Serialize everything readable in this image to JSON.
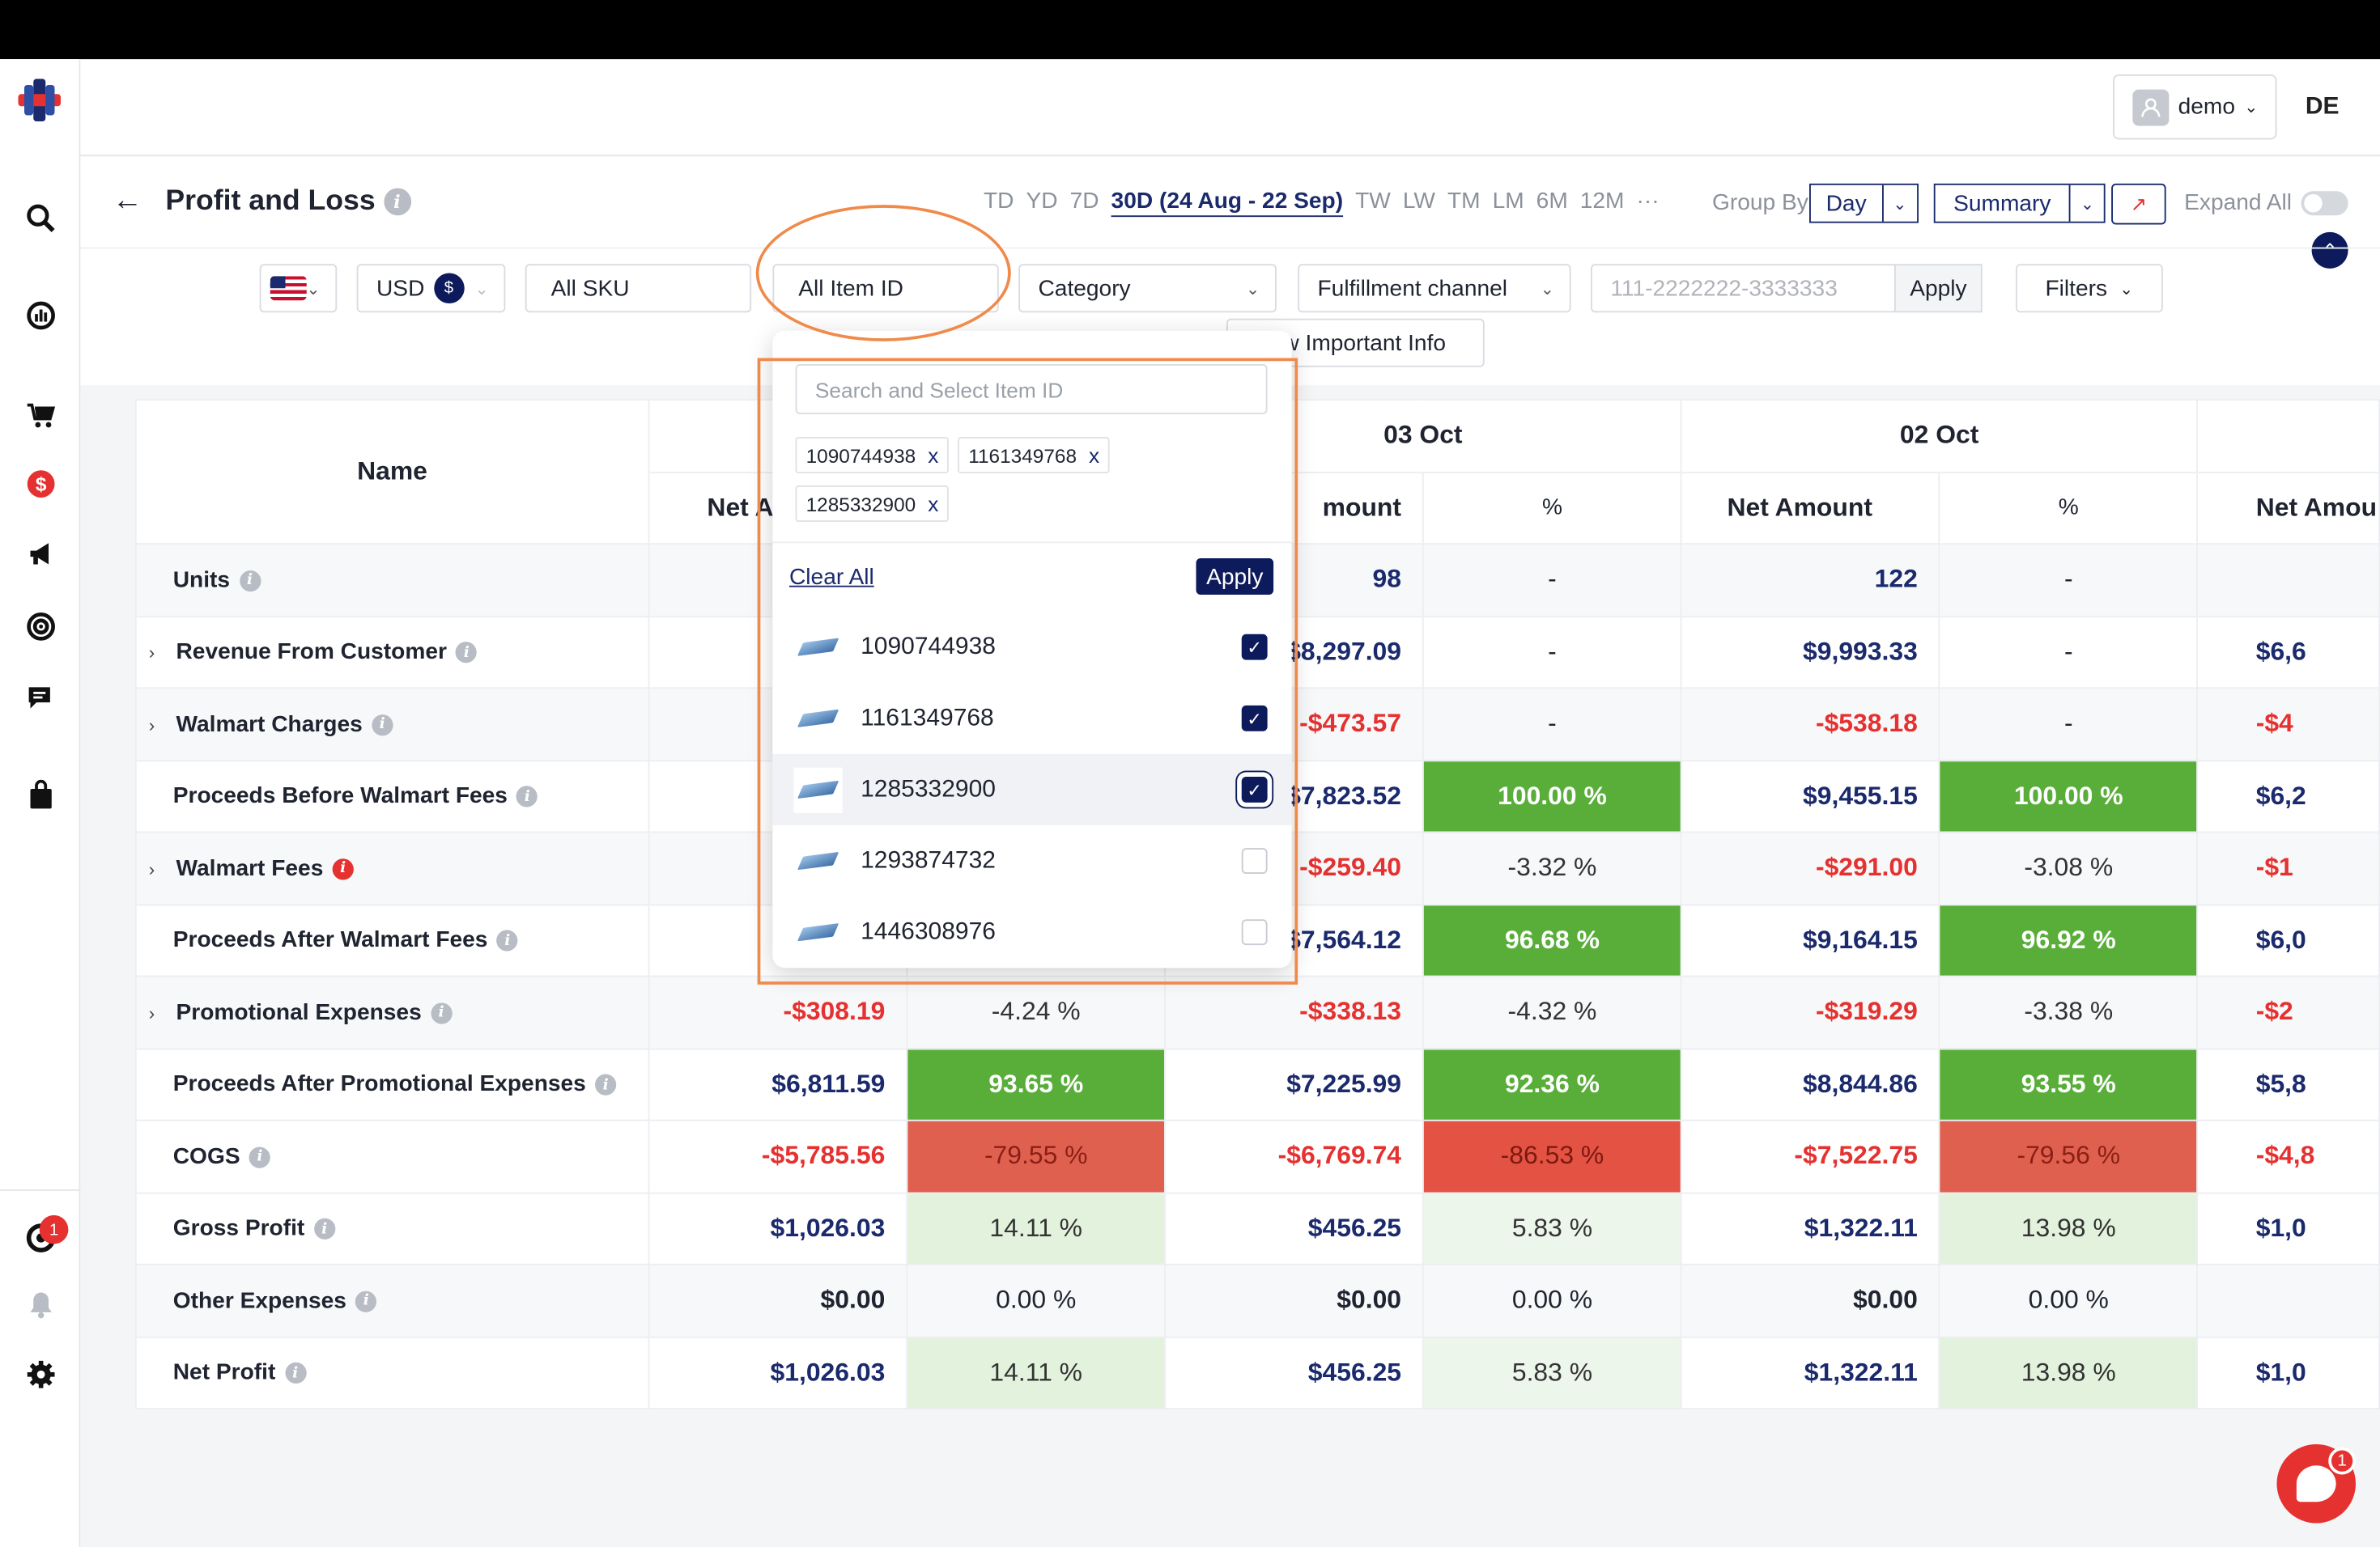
{
  "header": {
    "page_title": "Profit and Loss",
    "user": "demo",
    "user_initials": "DE"
  },
  "ranges": [
    {
      "label": "TD"
    },
    {
      "label": "YD"
    },
    {
      "label": "7D"
    },
    {
      "label": "30D (24 Aug - 22 Sep)",
      "active": true
    },
    {
      "label": "TW"
    },
    {
      "label": "LW"
    },
    {
      "label": "TM"
    },
    {
      "label": "LM"
    },
    {
      "label": "6M"
    },
    {
      "label": "12M"
    },
    {
      "label": "···"
    }
  ],
  "controls": {
    "group_by_label": "Group By",
    "group_by_value": "Day",
    "view_value": "Summary",
    "expand_all_label": "Expand All"
  },
  "filters": {
    "currency": "USD",
    "currency_symbol": "$",
    "sku": "All SKU",
    "item_id": "All Item ID",
    "category": "Category",
    "fulfillment": "Fulfillment channel",
    "order_placeholder": "111-2222222-3333333",
    "apply": "Apply",
    "filters_label": "Filters",
    "important_info": "w Important Info"
  },
  "dropdown": {
    "search_placeholder": "Search and Select Item ID",
    "chips": [
      "1090744938",
      "1161349768",
      "1285332900"
    ],
    "chip_remove": "x",
    "clear_all": "Clear All",
    "apply": "Apply",
    "options": [
      {
        "id": "1090744938",
        "checked": true
      },
      {
        "id": "1161349768",
        "checked": true
      },
      {
        "id": "1285332900",
        "checked": true,
        "highlight": true
      },
      {
        "id": "1293874732",
        "checked": false
      },
      {
        "id": "1446308976",
        "checked": false
      }
    ]
  },
  "table": {
    "name_header": "Name",
    "dates": [
      "03 Oct",
      "02 Oct"
    ],
    "sub_headers": {
      "col1": "Net A",
      "col3": "mount",
      "pct": "%",
      "net": "Net Amount",
      "last": "Net Amou"
    },
    "rows": [
      {
        "name": "Units",
        "expand": false,
        "info": "grey",
        "c1": "",
        "c2": "",
        "c3": "98",
        "c4": "-",
        "c5": "122",
        "c6": "-",
        "c7": ""
      },
      {
        "name": "Revenue From Customer",
        "expand": true,
        "info": "grey",
        "c1": "",
        "c2": "",
        "c3": "$8,297.09",
        "c4": "-",
        "c5": "$9,993.33",
        "c6": "-",
        "c7": "$6,6"
      },
      {
        "name": "Walmart Charges",
        "expand": true,
        "info": "grey",
        "c1": "",
        "c2": "",
        "c3": "-$473.57",
        "c4": "-",
        "c5": "-$538.18",
        "c6": "-",
        "c7": "-$4"
      },
      {
        "name": "Proceeds Before Walmart Fees",
        "expand": false,
        "info": "grey",
        "c1": "",
        "c2": "",
        "c3": "$7,823.52",
        "c4": "100.00 %",
        "c5": "$9,455.15",
        "c6": "100.00 %",
        "c7": "$6,2"
      },
      {
        "name": "Walmart Fees",
        "expand": true,
        "info": "red",
        "c1": "",
        "c2": "",
        "c3": "-$259.40",
        "c4": "-3.32 %",
        "c5": "-$291.00",
        "c6": "-3.08 %",
        "c7": "-$1"
      },
      {
        "name": "Proceeds After Walmart Fees",
        "expand": false,
        "info": "grey",
        "c1": "",
        "c2": "",
        "c3": "$7,564.12",
        "c4": "96.68 %",
        "c5": "$9,164.15",
        "c6": "96.92 %",
        "c7": "$6,0"
      },
      {
        "name": "Promotional Expenses",
        "expand": true,
        "info": "grey",
        "c1": "-$308.19",
        "c2": "-4.24 %",
        "c3": "-$338.13",
        "c4": "-4.32 %",
        "c5": "-$319.29",
        "c6": "-3.38 %",
        "c7": "-$2"
      },
      {
        "name": "Proceeds After Promotional Expenses",
        "expand": false,
        "info": "grey",
        "c1": "$6,811.59",
        "c2": "93.65 %",
        "c3": "$7,225.99",
        "c4": "92.36 %",
        "c5": "$8,844.86",
        "c6": "93.55 %",
        "c7": "$5,8"
      },
      {
        "name": "COGS",
        "expand": false,
        "info": "grey",
        "c1": "-$5,785.56",
        "c2": "-79.55 %",
        "c3": "-$6,769.74",
        "c4": "-86.53 %",
        "c5": "-$7,522.75",
        "c6": "-79.56 %",
        "c7": "-$4,8"
      },
      {
        "name": "Gross Profit",
        "expand": false,
        "info": "grey",
        "c1": "$1,026.03",
        "c2": "14.11 %",
        "c3": "$456.25",
        "c4": "5.83 %",
        "c5": "$1,322.11",
        "c6": "13.98 %",
        "c7": "$1,0"
      },
      {
        "name": "Other Expenses",
        "expand": false,
        "info": "grey",
        "c1": "$0.00",
        "c2": "0.00 %",
        "c3": "$0.00",
        "c4": "0.00 %",
        "c5": "$0.00",
        "c6": "0.00 %",
        "c7": ""
      },
      {
        "name": "Net Profit",
        "expand": false,
        "info": "grey",
        "c1": "$1,026.03",
        "c2": "14.11 %",
        "c3": "$456.25",
        "c4": "5.83 %",
        "c5": "$1,322.11",
        "c6": "13.98 %",
        "c7": "$1,0"
      }
    ]
  },
  "badges": {
    "notifications": "1",
    "chat": "1"
  },
  "icons": [
    "logo-icon",
    "search-analytics-icon",
    "dashboard-icon",
    "cart-icon",
    "dollar-icon",
    "megaphone-icon",
    "target-icon",
    "chat-icon",
    "bag-icon",
    "support-icon",
    "bell-icon",
    "gear-icon"
  ],
  "colors": {
    "navy": "#1a2a6c",
    "red": "#e5312f",
    "green": "#59ae3a",
    "highlight_orange": "#f08a4b"
  }
}
